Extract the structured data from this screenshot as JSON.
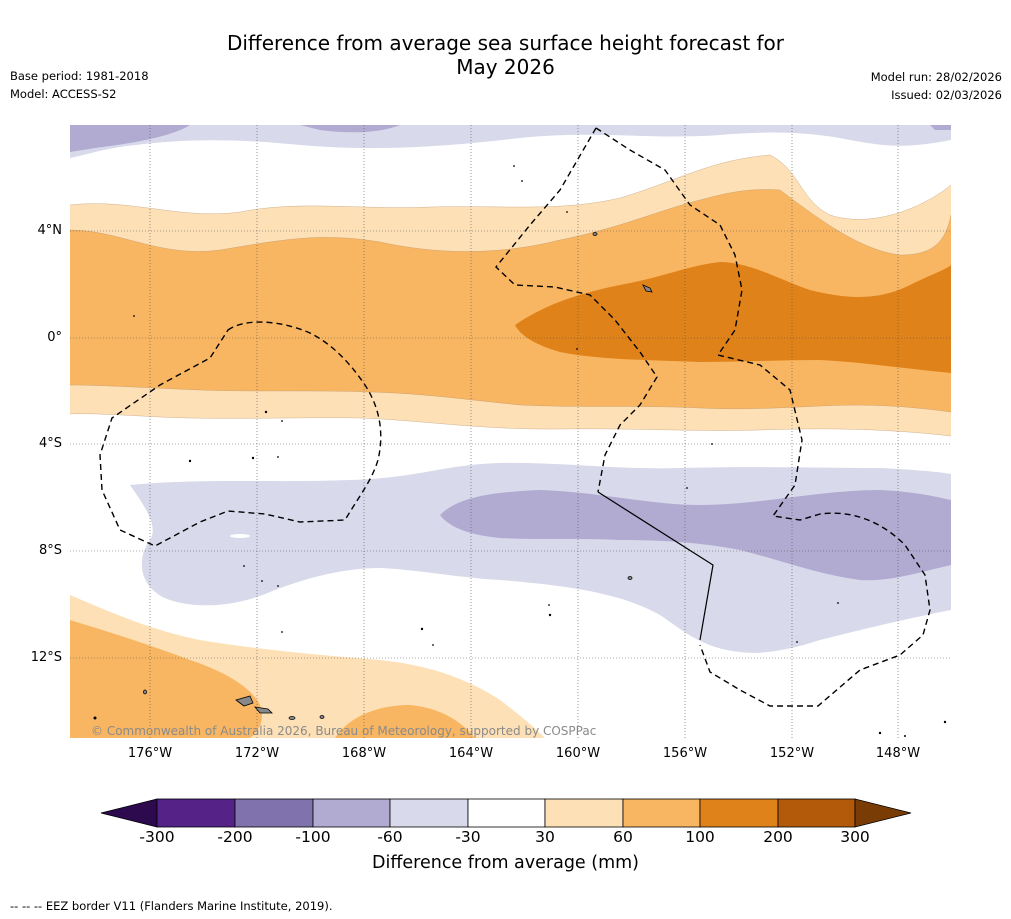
{
  "title": "Difference from average sea surface height forecast for May 2026",
  "title_line1": "Difference from average sea surface height forecast for",
  "title_line2": "May 2026",
  "meta": {
    "base_period": "Base period: 1981-2018",
    "model": "Model: ACCESS-S2",
    "model_run": "Model run: 28/02/2026",
    "issued": "Issued: 02/03/2026"
  },
  "map": {
    "lat_labels": [
      "4°N",
      "0°",
      "4°S",
      "8°S",
      "12°S"
    ],
    "lon_labels": [
      "176°W",
      "172°W",
      "168°W",
      "164°W",
      "160°W",
      "156°W",
      "152°W",
      "148°W"
    ],
    "copyright": "© Commonwealth of Australia 2026, Bureau of Meteorology, supported by COSPPac"
  },
  "colorbar": {
    "title": "Difference from average (mm)",
    "ticks": [
      "-300",
      "-200",
      "-100",
      "-60",
      "-30",
      "30",
      "60",
      "100",
      "200",
      "300"
    ],
    "colors": [
      "#2d0a4e",
      "#552288",
      "#8072ac",
      "#b1aad1",
      "#d8d9ea",
      "#ffffff",
      "#fde0b6",
      "#f9b662",
      "#e0821a",
      "#b3590a",
      "#7a3c05"
    ]
  },
  "footnote": "-- -- -- EEZ border V11 (Flanders Marine Institute, 2019)."
}
